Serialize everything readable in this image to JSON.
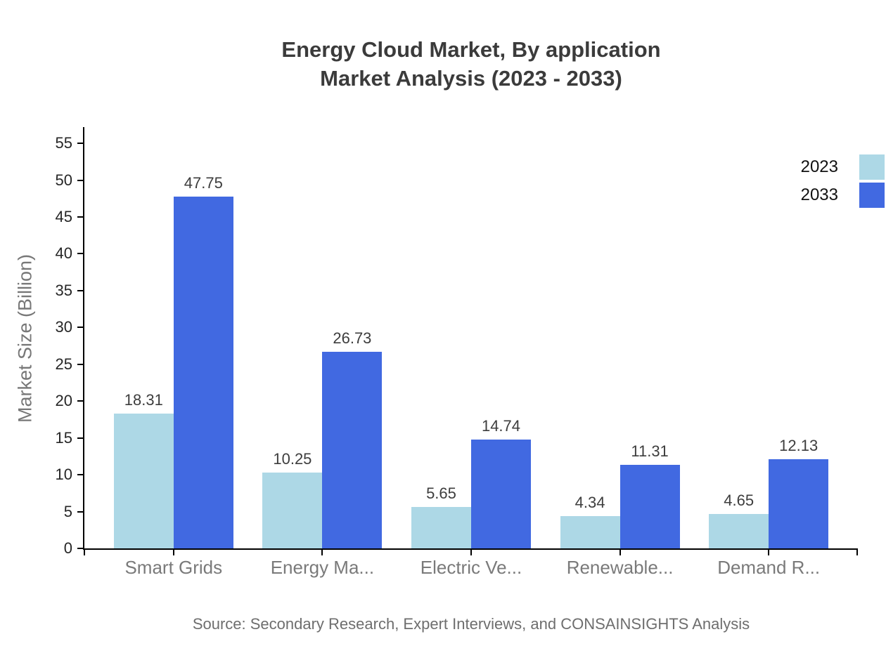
{
  "title": {
    "line1": "Energy Cloud Market, By application",
    "line2": "Market Analysis (2023 - 2033)"
  },
  "source": "Source: Secondary Research, Expert Interviews, and CONSAINSIGHTS Analysis",
  "y_axis": {
    "title": "Market Size (Billion)",
    "min": 0,
    "max": 55,
    "step": 5
  },
  "legend": [
    {
      "label": "2023",
      "color": "#ADD8E6"
    },
    {
      "label": "2033",
      "color": "#4169E1"
    }
  ],
  "colors": {
    "series_2023": "#ADD8E6",
    "series_2033": "#4169E1",
    "axis": "#000000",
    "title_text": "#3b3b3b",
    "muted_text": "#7a7a7a"
  },
  "chart_data": {
    "type": "bar",
    "title": "Energy Cloud Market, By application Market Analysis (2023 - 2033)",
    "categories": [
      "Smart Grids",
      "Energy Ma...",
      "Electric Ve...",
      "Renewable...",
      "Demand R..."
    ],
    "series": [
      {
        "name": "2023",
        "color": "#ADD8E6",
        "values": [
          18.31,
          10.25,
          5.65,
          4.34,
          4.65
        ]
      },
      {
        "name": "2033",
        "color": "#4169E1",
        "values": [
          47.75,
          26.73,
          14.74,
          11.31,
          12.13
        ]
      }
    ],
    "xlabel": "",
    "ylabel": "Market Size (Billion)",
    "ylim": [
      0,
      55
    ],
    "ytick_step": 5,
    "grid": false,
    "legend_position": "top-right",
    "value_labels": true,
    "value_label_decimals": 2
  }
}
